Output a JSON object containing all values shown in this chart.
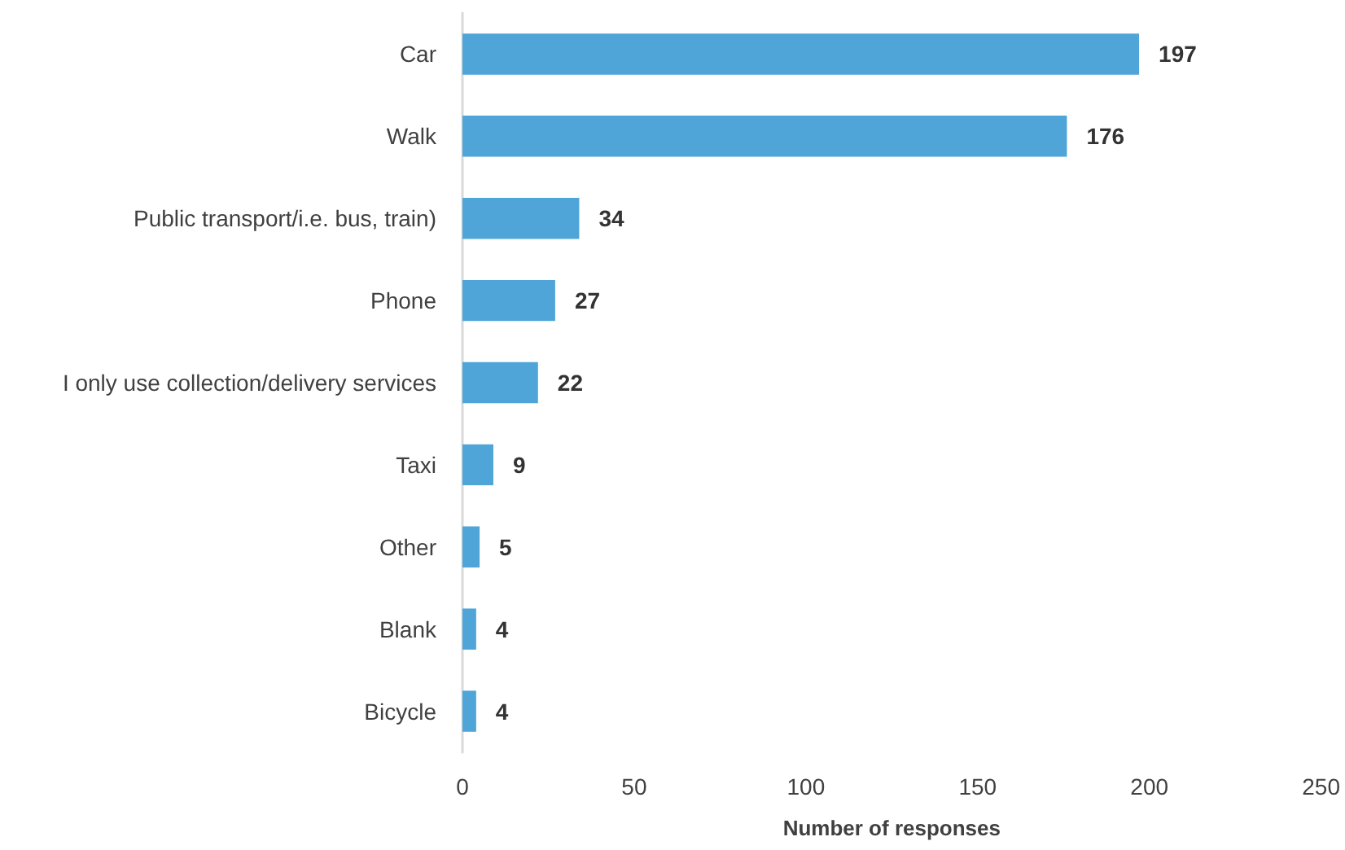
{
  "chart_data": {
    "type": "bar",
    "orientation": "horizontal",
    "categories": [
      "Car",
      "Walk",
      "Public transport/i.e. bus, train)",
      "Phone",
      "I only use collection/delivery services",
      "Taxi",
      "Other",
      "Blank",
      "Bicycle"
    ],
    "values": [
      197,
      176,
      34,
      27,
      22,
      9,
      5,
      4,
      4
    ],
    "color": "#4fa5d8",
    "xlim": [
      0,
      250
    ],
    "xticks": [
      0,
      50,
      100,
      150,
      200,
      250
    ],
    "xlabel": "Number of responses",
    "data_labels": true,
    "grid": false
  }
}
